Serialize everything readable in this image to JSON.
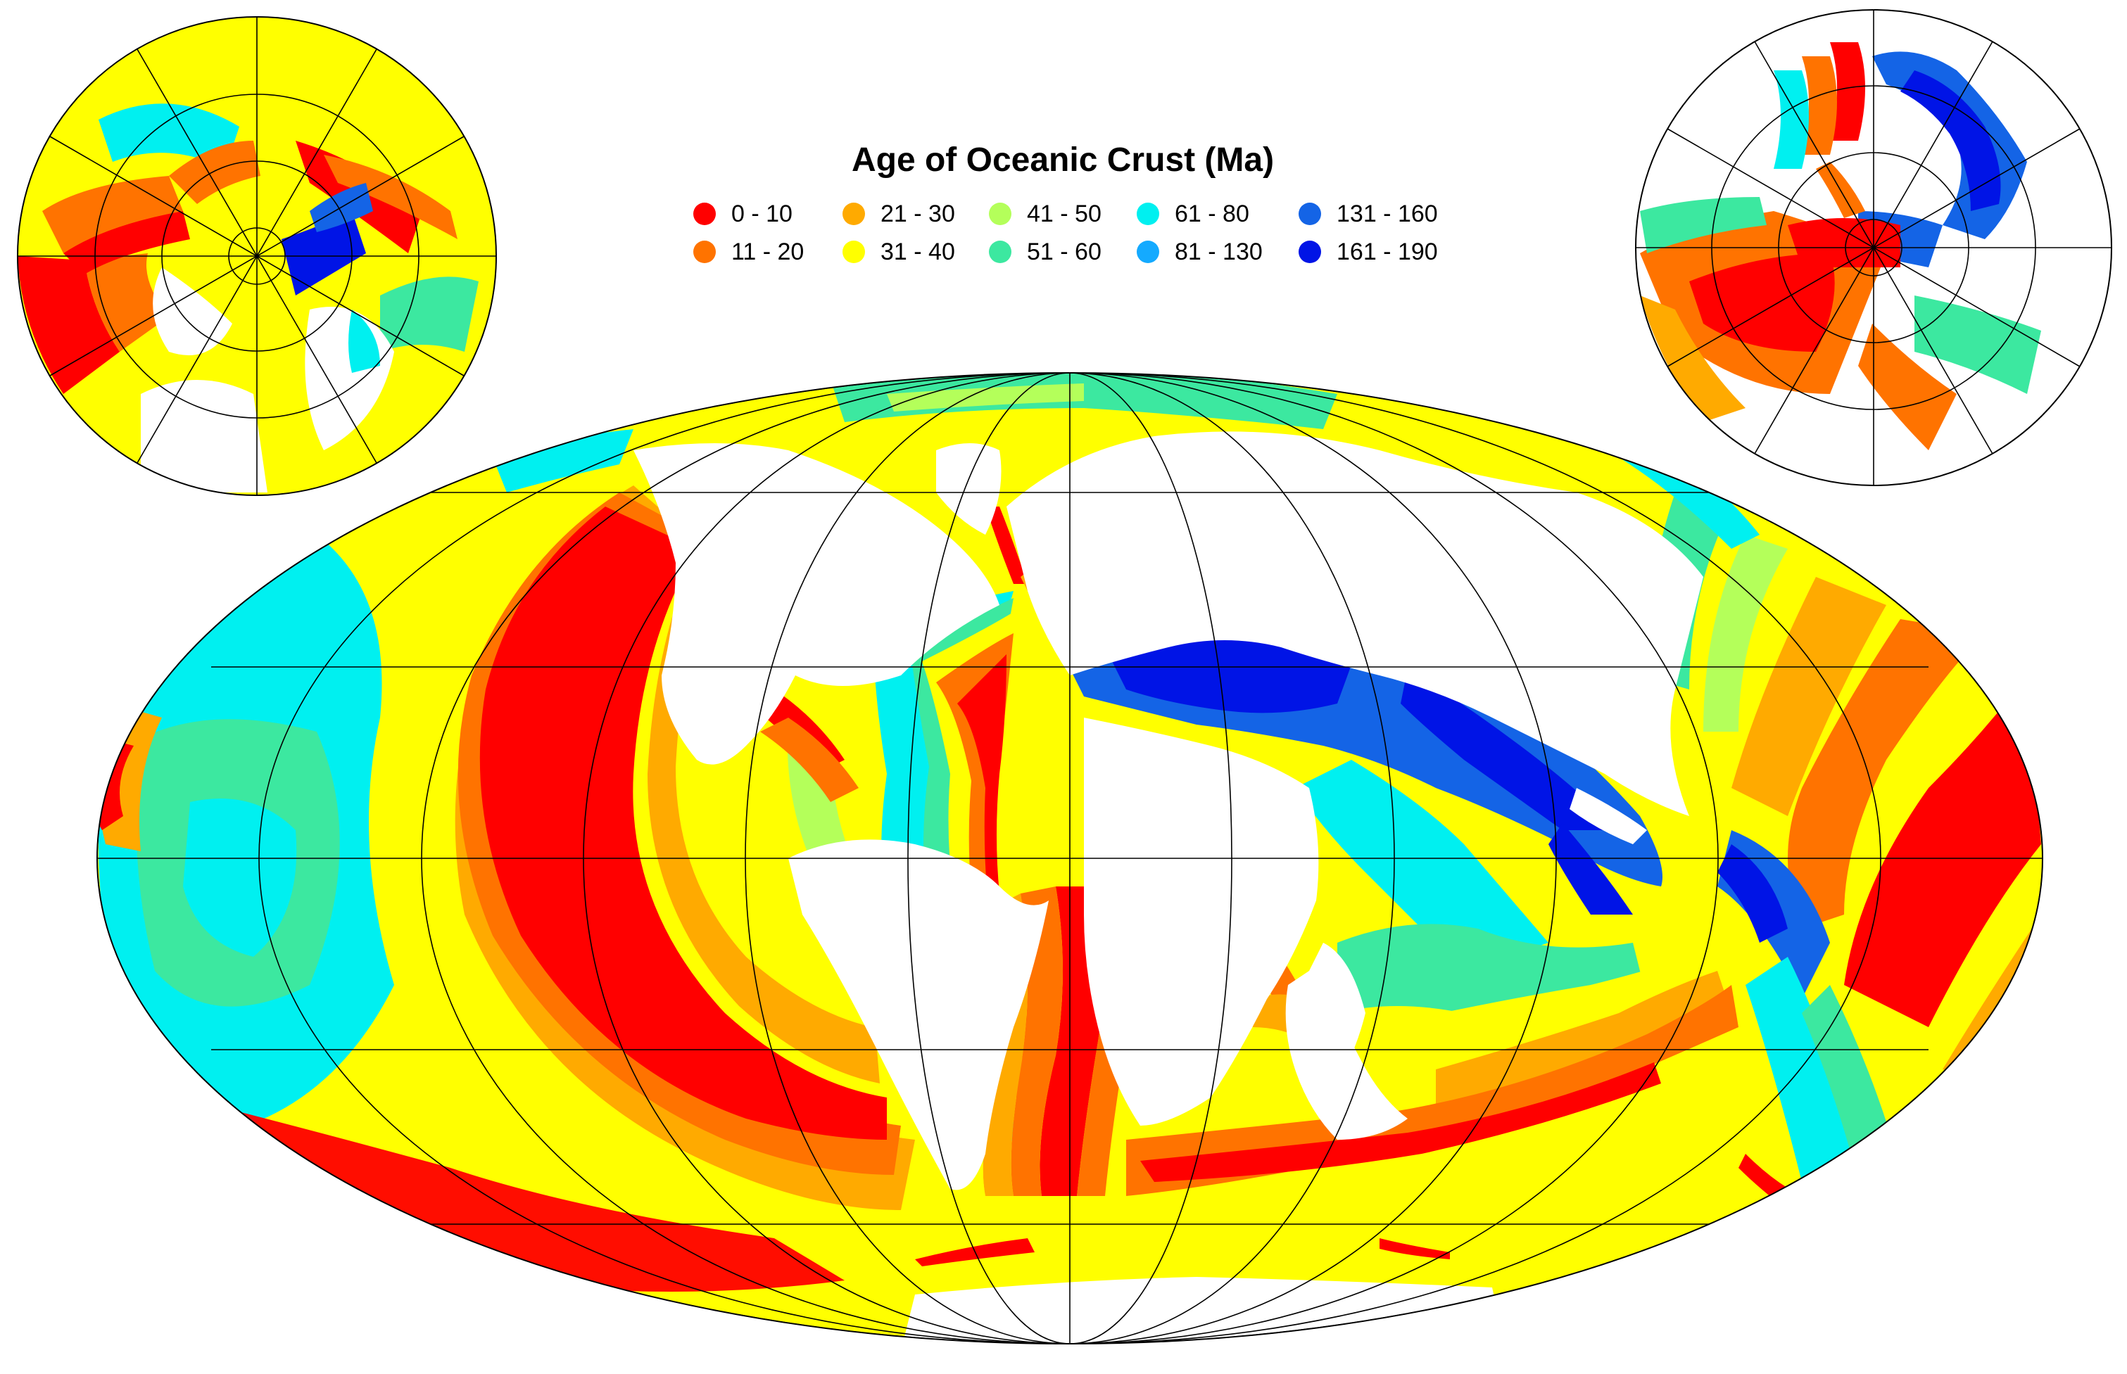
{
  "title": "Age of Oceanic Crust (Ma)",
  "legend": [
    {
      "label": "0 - 10",
      "color": "#ff0000"
    },
    {
      "label": "11 - 20",
      "color": "#ff7300"
    },
    {
      "label": "21 - 30",
      "color": "#ffaa00"
    },
    {
      "label": "31 - 40",
      "color": "#ffff00"
    },
    {
      "label": "41 - 50",
      "color": "#b4ff5a"
    },
    {
      "label": "51 - 60",
      "color": "#3ce8a0"
    },
    {
      "label": "61 - 80",
      "color": "#00f0f0"
    },
    {
      "label": "81 - 130",
      "color": "#14aaff"
    },
    {
      "label": "131 - 160",
      "color": "#1464e6"
    },
    {
      "label": "161 - 190",
      "color": "#0014e6"
    }
  ],
  "maps": {
    "main_projection": "world-ellipse",
    "insets": [
      "north-polar-stereographic",
      "south-polar-stereographic"
    ]
  },
  "land_color": "#ffffff",
  "grid_color": "#000000"
}
